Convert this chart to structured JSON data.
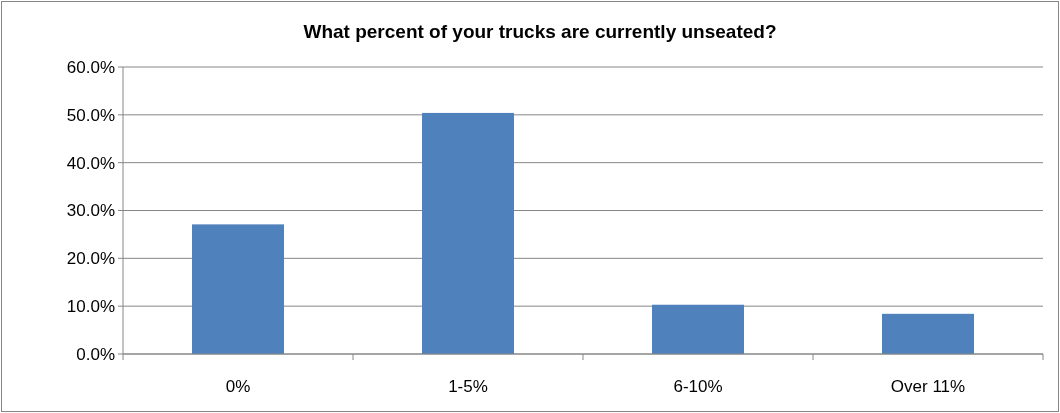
{
  "chart_data": {
    "type": "bar",
    "title": "What percent of your trucks are currently unseated?",
    "categories": [
      "0%",
      "1-5%",
      "6-10%",
      "Over 11%"
    ],
    "values": [
      27.1,
      50.4,
      10.3,
      8.4
    ],
    "color": "#4f81bd",
    "ylim": [
      0,
      60
    ],
    "yticks": [
      {
        "value": 0,
        "label": "0.0%"
      },
      {
        "value": 10,
        "label": "10.0%"
      },
      {
        "value": 20,
        "label": "20.0%"
      },
      {
        "value": 30,
        "label": "30.0%"
      },
      {
        "value": 40,
        "label": "40.0%"
      },
      {
        "value": 50,
        "label": "50.0%"
      },
      {
        "value": 60,
        "label": "60.0%"
      }
    ],
    "grid": "y"
  }
}
